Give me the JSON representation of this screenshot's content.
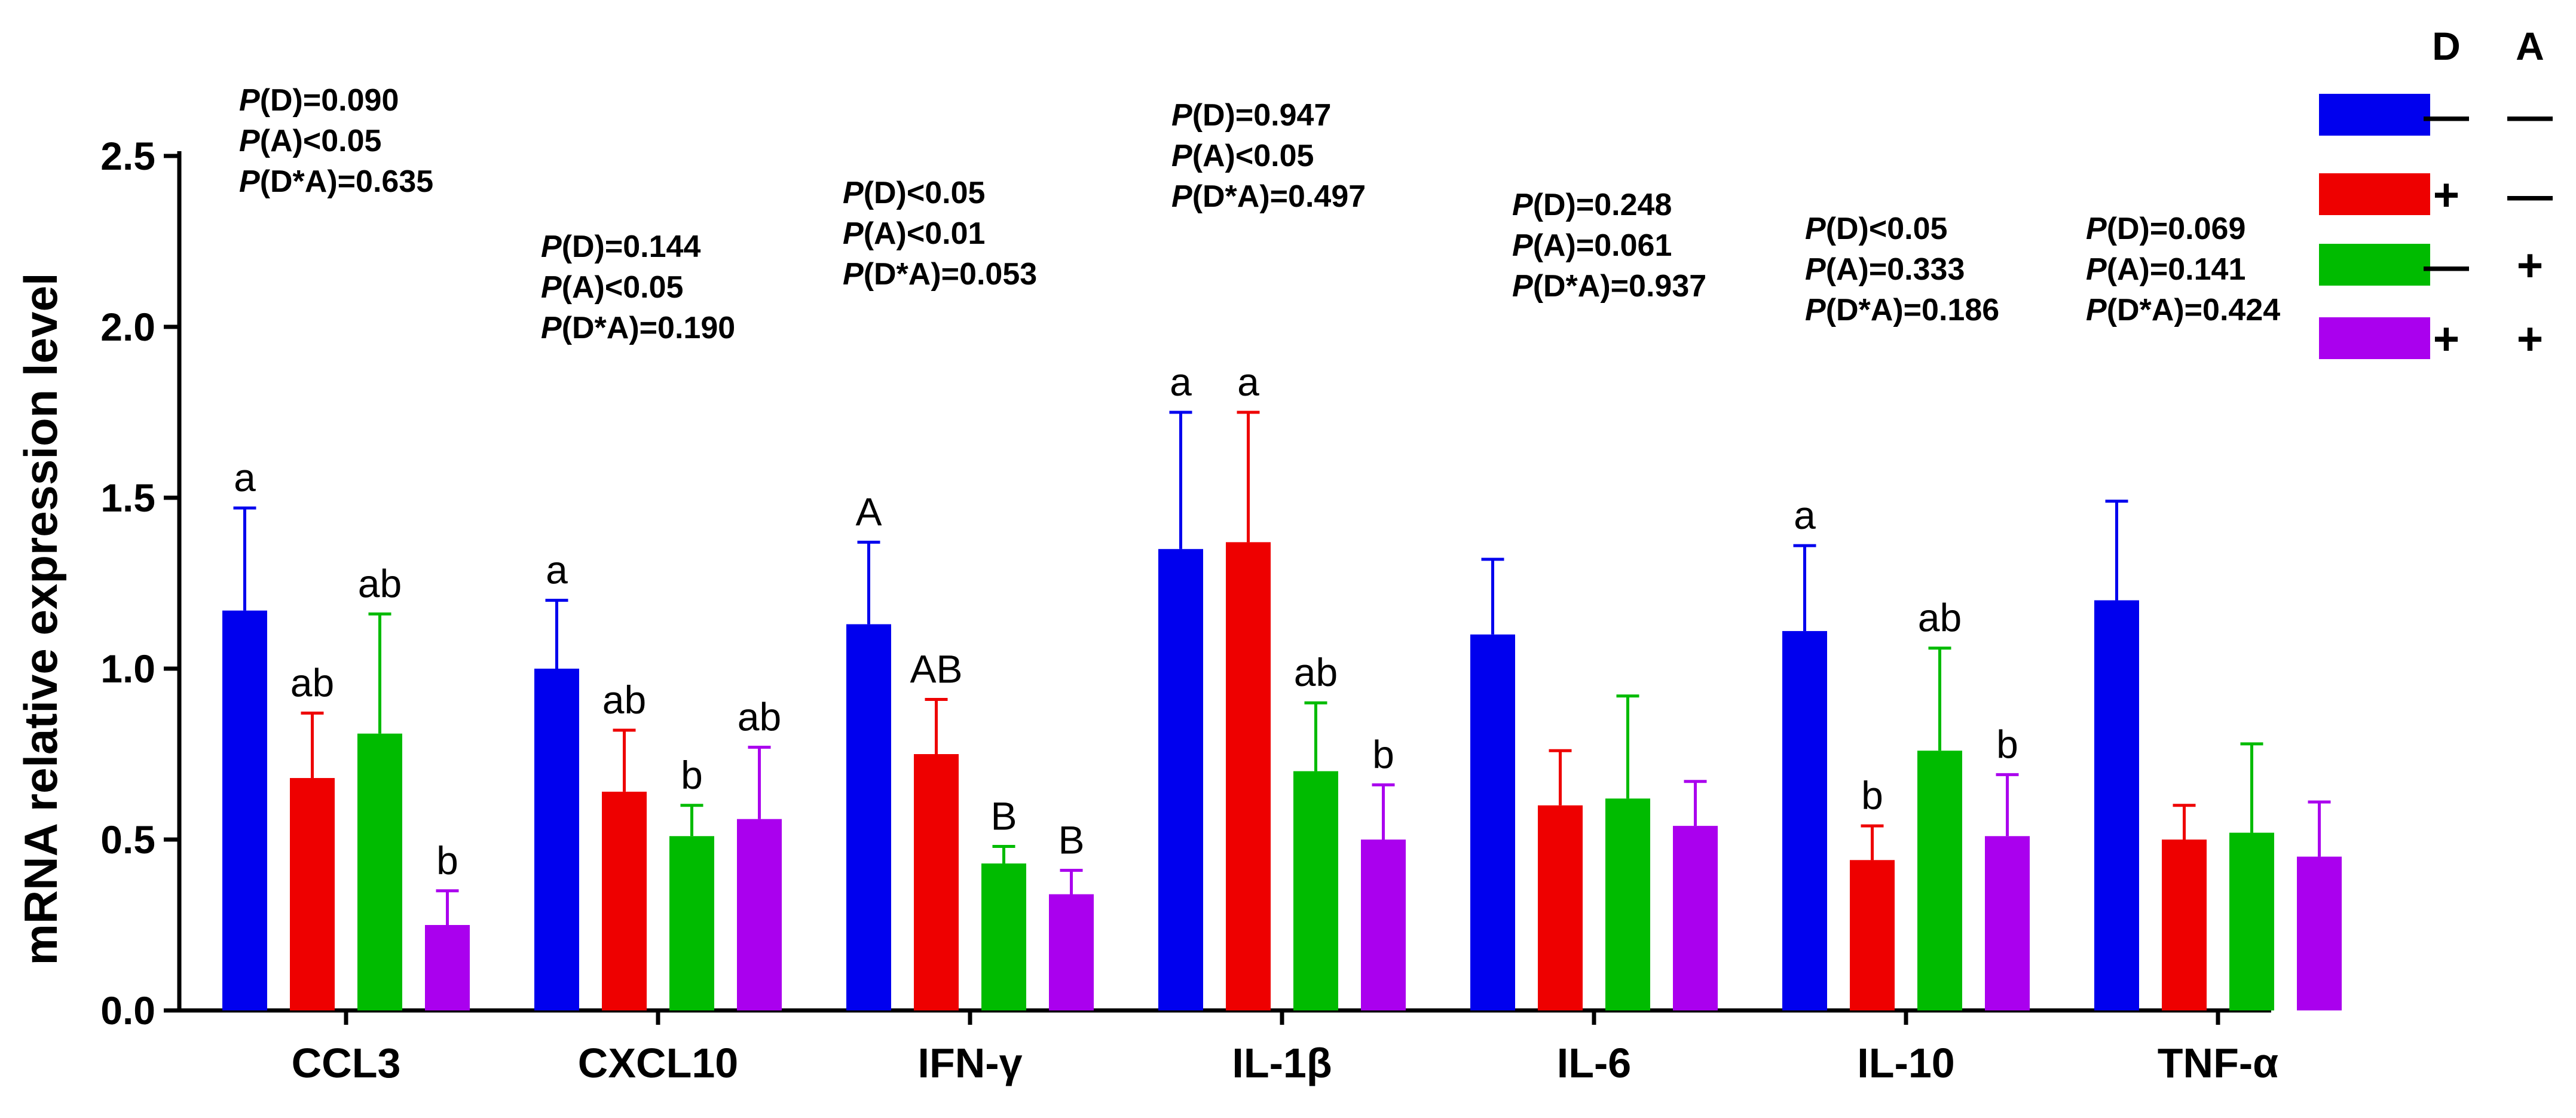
{
  "chart_data": {
    "type": "bar",
    "ylabel": "mRNA relative expression level",
    "ylim": [
      0,
      2.5
    ],
    "yticks": [
      "0.0",
      "0.5",
      "1.0",
      "1.5",
      "2.0",
      "2.5"
    ],
    "categories": [
      "CCL3",
      "CXCL10",
      "IFN-γ",
      "IL-1β",
      "IL-6",
      "IL-10",
      "TNF-α"
    ],
    "series": [
      {
        "name": "D− A−",
        "color": "#0000ee",
        "values": [
          1.17,
          1.0,
          1.13,
          1.35,
          1.1,
          1.11,
          1.2
        ],
        "errors": [
          0.3,
          0.2,
          0.24,
          0.4,
          0.22,
          0.25,
          0.29
        ]
      },
      {
        "name": "D+ A−",
        "color": "#ee0000",
        "values": [
          0.68,
          0.64,
          0.75,
          1.37,
          0.6,
          0.44,
          0.5
        ],
        "errors": [
          0.19,
          0.18,
          0.16,
          0.38,
          0.16,
          0.1,
          0.1
        ]
      },
      {
        "name": "D− A+",
        "color": "#00bb00",
        "values": [
          0.81,
          0.51,
          0.43,
          0.7,
          0.62,
          0.76,
          0.52
        ],
        "errors": [
          0.35,
          0.09,
          0.05,
          0.2,
          0.3,
          0.3,
          0.26
        ]
      },
      {
        "name": "D+ A+",
        "color": "#aa00ee",
        "values": [
          0.25,
          0.56,
          0.34,
          0.5,
          0.54,
          0.51,
          0.45
        ],
        "errors": [
          0.1,
          0.21,
          0.07,
          0.16,
          0.13,
          0.18,
          0.16
        ]
      }
    ],
    "letters": [
      [
        "a",
        "ab",
        "ab",
        "b"
      ],
      [
        "a",
        "ab",
        "b",
        "ab"
      ],
      [
        "A",
        "AB",
        "B",
        "B"
      ],
      [
        "a",
        "a",
        "ab",
        "b"
      ],
      [
        "",
        "",
        "",
        ""
      ],
      [
        "a",
        "b",
        "ab",
        "b"
      ],
      [
        "",
        "",
        "",
        ""
      ]
    ],
    "pvalues": [
      [
        "=0.090",
        "<0.05",
        "=0.635"
      ],
      [
        "=0.144",
        "<0.05",
        "=0.190"
      ],
      [
        "<0.05",
        "<0.01",
        "=0.053"
      ],
      [
        "=0.947",
        "<0.05",
        "=0.497"
      ],
      [
        "=0.248",
        "=0.061",
        "=0.937"
      ],
      [
        "<0.05",
        "=0.333",
        "=0.186"
      ],
      [
        "=0.069",
        "=0.141",
        "=0.424"
      ]
    ],
    "p_symbol": "P",
    "p_factors": [
      "(D)",
      "(A)",
      "(D*A)"
    ],
    "legend": {
      "headers": [
        "D",
        "A"
      ],
      "rows": [
        {
          "d": "—",
          "a": "—"
        },
        {
          "d": "+",
          "a": "—"
        },
        {
          "d": "—",
          "a": "+"
        },
        {
          "d": "+",
          "a": "+"
        }
      ]
    }
  }
}
